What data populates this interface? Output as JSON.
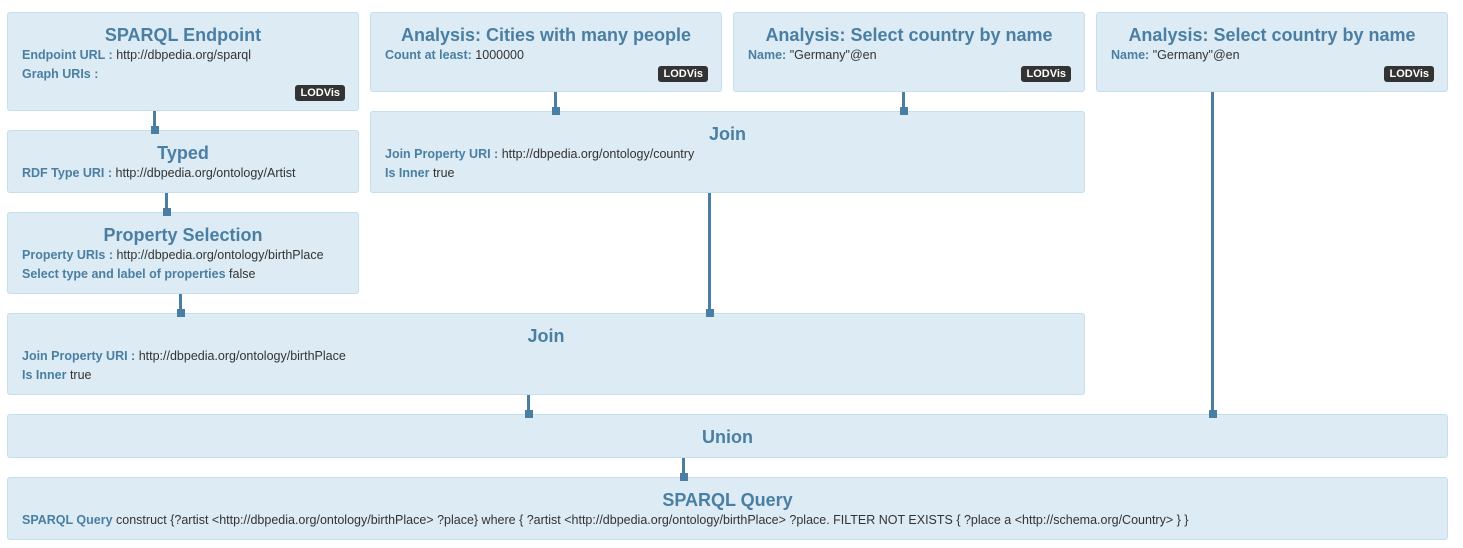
{
  "nodes": {
    "sparql_endpoint": {
      "title": "SPARQL Endpoint",
      "endpoint_label": "Endpoint URL :",
      "endpoint_value": "http://dbpedia.org/sparql",
      "graph_label": "Graph URIs :",
      "graph_value": "",
      "badge": "LODVis"
    },
    "analysis_cities": {
      "title": "Analysis: Cities with many people",
      "count_label": "Count at least:",
      "count_value": "1000000",
      "badge": "LODVis"
    },
    "analysis_country_1": {
      "title": "Analysis: Select country by name",
      "name_label": "Name:",
      "name_value": "\"Germany\"@en",
      "badge": "LODVis"
    },
    "analysis_country_2": {
      "title": "Analysis: Select country by name",
      "name_label": "Name:",
      "name_value": "\"Germany\"@en",
      "badge": "LODVis"
    },
    "typed": {
      "title": "Typed",
      "rdf_label": "RDF Type URI :",
      "rdf_value": "http://dbpedia.org/ontology/Artist"
    },
    "join_top": {
      "title": "Join",
      "join_label": "Join Property URI :",
      "join_value": "http://dbpedia.org/ontology/country",
      "inner_label": "Is Inner",
      "inner_value": "true"
    },
    "property_selection": {
      "title": "Property Selection",
      "prop_label": "Property URIs :",
      "prop_value": "http://dbpedia.org/ontology/birthPlace",
      "select_label": "Select type and label of properties",
      "select_value": "false"
    },
    "join_bottom": {
      "title": "Join",
      "join_label": "Join Property URI :",
      "join_value": "http://dbpedia.org/ontology/birthPlace",
      "inner_label": "Is Inner",
      "inner_value": "true"
    },
    "union": {
      "title": "Union"
    },
    "sparql_query": {
      "title": "SPARQL Query",
      "query_label": "SPARQL Query",
      "query_value": "construct {?artist <http://dbpedia.org/ontology/birthPlace> ?place} where { ?artist <http://dbpedia.org/ontology/birthPlace> ?place. FILTER NOT EXISTS { ?place a <http://schema.org/Country> } }"
    }
  },
  "colors": {
    "node_bg": "#dcebf4",
    "node_border": "#c6dfec",
    "accent": "#4a7fa3",
    "badge_bg": "#333333"
  }
}
